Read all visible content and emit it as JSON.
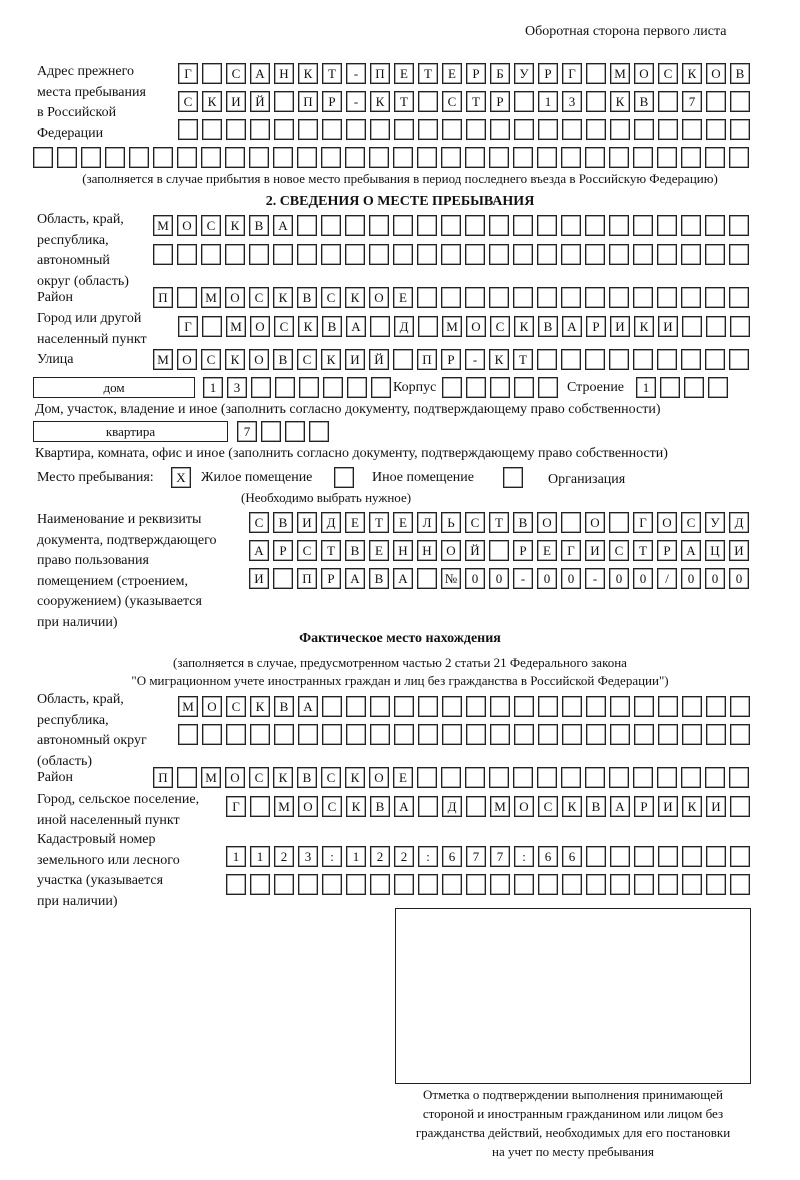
{
  "header": {
    "page_side": "Оборотная сторона первого листа"
  },
  "previous_address": {
    "label": [
      "Адрес прежнего",
      "места пребывания",
      "в Российской",
      "Федерации"
    ],
    "rows": [
      [
        "Г",
        "",
        "С",
        "А",
        "Н",
        "К",
        "Т",
        "-",
        "П",
        "Е",
        "Т",
        "Е",
        "Р",
        "Б",
        "У",
        "Р",
        "Г",
        "",
        "М",
        "О",
        "С",
        "К",
        "О",
        "В"
      ],
      [
        "С",
        "К",
        "И",
        "Й",
        "",
        "П",
        "Р",
        "-",
        "К",
        "Т",
        "",
        "С",
        "Т",
        "Р",
        "",
        "1",
        "3",
        "",
        "К",
        "В",
        "",
        "7",
        "",
        ""
      ],
      [
        "",
        "",
        "",
        "",
        "",
        "",
        "",
        "",
        "",
        "",
        "",
        "",
        "",
        "",
        "",
        "",
        "",
        "",
        "",
        "",
        "",
        "",
        "",
        ""
      ],
      [
        "",
        "",
        "",
        "",
        "",
        "",
        "",
        "",
        "",
        "",
        "",
        "",
        "",
        "",
        "",
        "",
        "",
        "",
        "",
        "",
        "",
        "",
        "",
        "",
        "",
        "",
        "",
        "",
        "",
        ""
      ]
    ],
    "note": "(заполняется в случае прибытия в новое место пребывания в период последнего въезда в Российскую Федерацию)"
  },
  "section2": {
    "title": "2. СВЕДЕНИЯ О МЕСТЕ ПРЕБЫВАНИЯ",
    "region_label": [
      "Область, край,",
      "республика,",
      "автономный",
      "округ (область)"
    ],
    "region_rows": [
      [
        "М",
        "О",
        "С",
        "К",
        "В",
        "А",
        "",
        "",
        "",
        "",
        "",
        "",
        "",
        "",
        "",
        "",
        "",
        "",
        "",
        "",
        "",
        "",
        "",
        "",
        ""
      ],
      [
        "",
        "",
        "",
        "",
        "",
        "",
        "",
        "",
        "",
        "",
        "",
        "",
        "",
        "",
        "",
        "",
        "",
        "",
        "",
        "",
        "",
        "",
        "",
        "",
        ""
      ]
    ],
    "district_label": "Район",
    "district_row": [
      "П",
      "",
      "М",
      "О",
      "С",
      "К",
      "В",
      "С",
      "К",
      "О",
      "Е",
      "",
      "",
      "",
      "",
      "",
      "",
      "",
      "",
      "",
      "",
      "",
      "",
      "",
      ""
    ],
    "city_label": [
      "Город или другой",
      "населенный пункт"
    ],
    "city_row": [
      "Г",
      "",
      "М",
      "О",
      "С",
      "К",
      "В",
      "А",
      "",
      "Д",
      "",
      "М",
      "О",
      "С",
      "К",
      "В",
      "А",
      "Р",
      "И",
      "К",
      "И",
      "",
      "",
      ""
    ],
    "street_label": "Улица",
    "street_row": [
      "М",
      "О",
      "С",
      "К",
      "О",
      "В",
      "С",
      "К",
      "И",
      "Й",
      "",
      "П",
      "Р",
      "-",
      "К",
      "Т",
      "",
      "",
      "",
      "",
      "",
      "",
      "",
      "",
      ""
    ],
    "house_type": "дом",
    "house_row": [
      "1",
      "3",
      "",
      "",
      "",
      "",
      "",
      ""
    ],
    "building_label": "Корпус",
    "building_row": [
      "",
      "",
      "",
      "",
      ""
    ],
    "structure_label": "Строение",
    "structure_row": [
      "1",
      "",
      "",
      ""
    ],
    "house_note": "Дом, участок, владение и иное (заполнить согласно документу, подтверждающему право собственности)",
    "apartment_type": "квартира",
    "apartment_row": [
      "7",
      "",
      "",
      ""
    ],
    "apartment_note": "Квартира, комната, офис и иное (заполнить согласно документу, подтверждающему право собственности)",
    "stay_place_label": "Место пребывания:",
    "stay_options": [
      {
        "label": "Жилое помещение",
        "mark": "X"
      },
      {
        "label": "Иное помещение",
        "mark": ""
      },
      {
        "label": "Организация",
        "mark": ""
      }
    ],
    "stay_note": "(Необходимо выбрать нужное)",
    "document_label": [
      "Наименование и реквизиты",
      "документа, подтверждающего",
      "право пользования",
      "помещением (строением,",
      "сооружением) (указывается",
      "при наличии)"
    ],
    "document_rows": [
      [
        "С",
        "В",
        "И",
        "Д",
        "Е",
        "Т",
        "Е",
        "Л",
        "Ь",
        "С",
        "Т",
        "В",
        "О",
        "",
        "О",
        "",
        "Г",
        "О",
        "С",
        "У",
        "Д"
      ],
      [
        "А",
        "Р",
        "С",
        "Т",
        "В",
        "Е",
        "Н",
        "Н",
        "О",
        "Й",
        "",
        "Р",
        "Е",
        "Г",
        "И",
        "С",
        "Т",
        "Р",
        "А",
        "Ц",
        "И"
      ],
      [
        "И",
        "",
        "П",
        "Р",
        "А",
        "В",
        "А",
        "",
        "№",
        "0",
        "0",
        "-",
        "0",
        "0",
        "-",
        "0",
        "0",
        "/",
        "0",
        "0",
        "0"
      ]
    ]
  },
  "actual_location": {
    "title": "Фактическое место нахождения",
    "note": [
      "(заполняется в случае, предусмотренном частью 2 статьи 21 Федерального закона",
      "\"О миграционном учете иностранных граждан и лиц без гражданства в Российской Федерации\")"
    ],
    "region_label": [
      "Область, край,",
      "республика,",
      "автономный округ",
      "(область)"
    ],
    "region_rows": [
      [
        "М",
        "О",
        "С",
        "К",
        "В",
        "А",
        "",
        "",
        "",
        "",
        "",
        "",
        "",
        "",
        "",
        "",
        "",
        "",
        "",
        "",
        "",
        "",
        "",
        ""
      ],
      [
        "",
        "",
        "",
        "",
        "",
        "",
        "",
        "",
        "",
        "",
        "",
        "",
        "",
        "",
        "",
        "",
        "",
        "",
        "",
        "",
        "",
        "",
        "",
        ""
      ]
    ],
    "district_label": "Район",
    "district_row": [
      "П",
      "",
      "М",
      "О",
      "С",
      "К",
      "В",
      "С",
      "К",
      "О",
      "Е",
      "",
      "",
      "",
      "",
      "",
      "",
      "",
      "",
      "",
      "",
      "",
      "",
      "",
      ""
    ],
    "city_label": [
      "Город, сельское поселение,",
      "иной населенный пункт"
    ],
    "city_row": [
      "Г",
      "",
      "М",
      "О",
      "С",
      "К",
      "В",
      "А",
      "",
      "Д",
      "",
      "М",
      "О",
      "С",
      "К",
      "В",
      "А",
      "Р",
      "И",
      "К",
      "И",
      ""
    ],
    "cadastral_label": [
      "Кадастровый номер",
      "земельного или лесного",
      "участка (указывается",
      "при наличии)"
    ],
    "cadastral_rows": [
      [
        "1",
        "1",
        "2",
        "3",
        ":",
        "1",
        "2",
        "2",
        ":",
        "6",
        "7",
        "7",
        ":",
        "6",
        "6",
        "",
        "",
        "",
        "",
        "",
        "",
        ""
      ],
      [
        "",
        "",
        "",
        "",
        "",
        "",
        "",
        "",
        "",
        "",
        "",
        "",
        "",
        "",
        "",
        "",
        "",
        "",
        "",
        "",
        "",
        ""
      ]
    ]
  },
  "confirmation": {
    "caption": [
      "Отметка о подтверждении выполнения принимающей",
      "стороной и иностранным гражданином или лицом без",
      "гражданства действий, необходимых для его постановки",
      "на учет по месту пребывания"
    ]
  }
}
